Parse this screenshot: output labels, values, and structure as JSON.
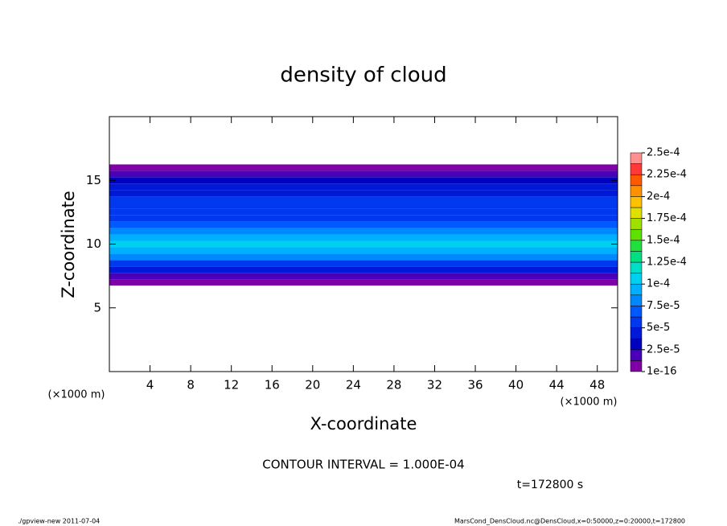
{
  "chart_data": {
    "type": "contour",
    "title": "density of cloud",
    "xlabel": "X-coordinate",
    "ylabel": "Z-coordinate",
    "xunit": "(×1000 m)",
    "yunit": "(×1000 m)",
    "xlim": [
      0,
      50
    ],
    "xticks": [
      4,
      8,
      12,
      16,
      20,
      24,
      28,
      32,
      36,
      40,
      44,
      48
    ],
    "ylim": [
      0,
      20
    ],
    "yticks": [
      5,
      10,
      15
    ],
    "levels": [
      {
        "value": 1e-16,
        "label": "1e-16"
      },
      {
        "value": 2.5e-05,
        "label": "2.5e-5"
      },
      {
        "value": 5e-05,
        "label": "5e-5"
      },
      {
        "value": 7.5e-05,
        "label": "7.5e-5"
      },
      {
        "value": 0.0001,
        "label": "1e-4"
      },
      {
        "value": 0.000125,
        "label": "1.25e-4"
      },
      {
        "value": 0.00015,
        "label": "1.5e-4"
      },
      {
        "value": 0.000175,
        "label": "1.75e-4"
      },
      {
        "value": 0.0002,
        "label": "2e-4"
      },
      {
        "value": 0.000225,
        "label": "2.25e-4"
      },
      {
        "value": 0.00025,
        "label": "2.5e-4"
      }
    ],
    "colors": [
      "#8000a8",
      "#4a00b8",
      "#0000c0",
      "#0018d8",
      "#0038f0",
      "#0058ff",
      "#0088ff",
      "#00b0ff",
      "#00d0f0",
      "#00e0c8",
      "#00e080",
      "#20e040",
      "#60e000",
      "#a0e000",
      "#e0e000",
      "#ffc000",
      "#ff9000",
      "#ff5a00",
      "#ff3838",
      "#ff9090"
    ],
    "profile": {
      "z": [
        7,
        7.5,
        8,
        8.5,
        9,
        9.5,
        10,
        10.5,
        11,
        11.5,
        12,
        12.5,
        13,
        13.5,
        14,
        14.5,
        15,
        15.5,
        16
      ],
      "values": [
        1e-06,
        1.5e-05,
        4e-05,
        6e-05,
        8e-05,
        9.5e-05,
        0.000105,
        9.5e-05,
        8e-05,
        7e-05,
        6e-05,
        5.5e-05,
        5e-05,
        5e-05,
        4.5e-05,
        4e-05,
        3.5e-05,
        1.5e-05,
        1e-06
      ]
    },
    "contour_interval": "CONTOUR INTERVAL = 1.000E-04",
    "time": "t=172800 s",
    "footer_left": "./gpview-new  2011-07-04",
    "footer_right": "MarsCond_DensCloud.nc@DensCloud,x=0:50000,z=0:20000,t=172800"
  }
}
